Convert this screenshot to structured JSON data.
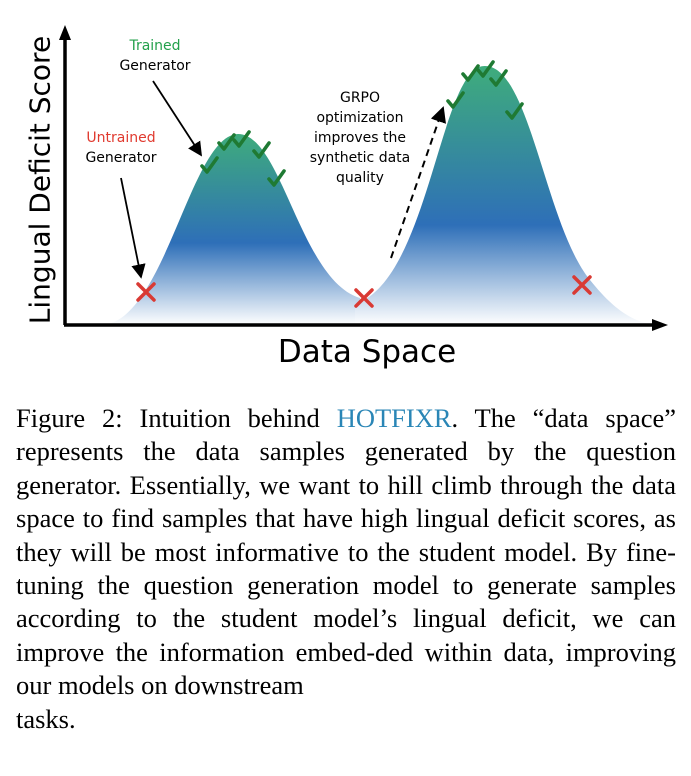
{
  "figure": {
    "y_axis_label": "Lingual Deficit Score",
    "x_axis_label": "Data Space",
    "labels": {
      "trained": "Trained",
      "trained_generator": "Generator",
      "untrained": "Untrained",
      "untrained_generator": "Generator",
      "grpo_line1": "GRPO",
      "grpo_line2": "optimization",
      "grpo_line3": "improves the",
      "grpo_line4": "synthetic data",
      "grpo_line5": "quality"
    },
    "colors": {
      "trained": "#23a04b",
      "untrained": "#e03a2f",
      "check": "#1f7a33",
      "cross": "#d93a34",
      "curve_top": "#3fae7a",
      "curve_mid": "#2e6fb8",
      "curve_bottom": "#ffffff"
    },
    "icons": [
      "check-icon",
      "cross-icon"
    ]
  },
  "caption": {
    "prefix": "Figure 2: Intuition behind ",
    "highlight": "HOTFIXR",
    "body": ". The “data space” represents the data samples generated by the question generator. Essentially, we want to hill climb through the data space to find samples that have high lingual deficit scores, as they will be most informative to the student model. By fine-tuning the question generation model to generate samples according to the student model’s lingual deficit, we can improve the information embed-ded within data, improving our models on downstream",
    "last_line": "tasks."
  }
}
